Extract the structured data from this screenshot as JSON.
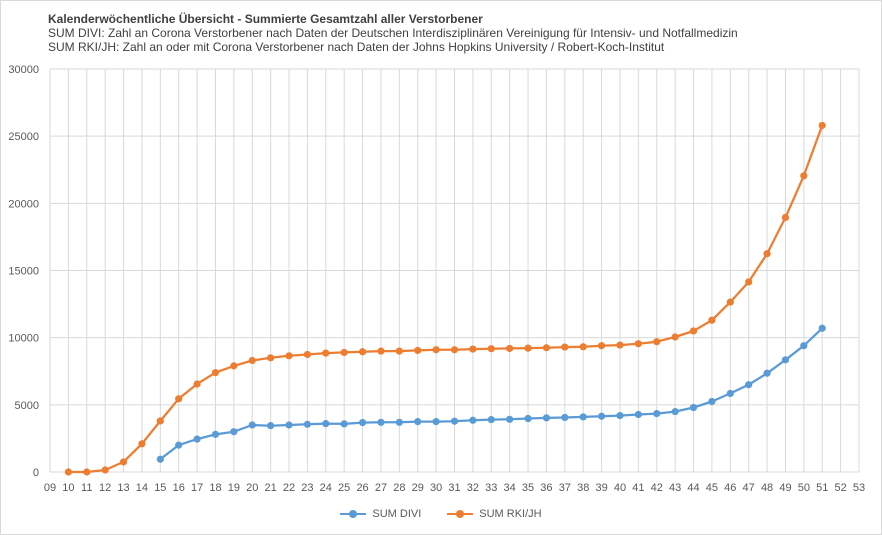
{
  "colors": {
    "divi": "#5b9bd5",
    "rki": "#ed7d31",
    "grid": "#d9d9d9",
    "axis_text": "#595959"
  },
  "chart_data": {
    "type": "line",
    "title": "Kalenderwöchentliche Übersicht -  Summierte Gesamtzahl aller Verstorbener",
    "subtitle_lines": [
      "SUM DIVI: Zahl an Corona Verstorbener nach Daten der Deutschen Interdisziplinären Vereinigung für Intensiv- und Notfallmedizin",
      "SUM RKI/JH: Zahl an oder mit Corona  Verstorbener nach Daten der Johns Hopkins University / Robert-Koch-Institut"
    ],
    "categories": [
      "09",
      "10",
      "11",
      "12",
      "13",
      "14",
      "15",
      "16",
      "17",
      "18",
      "19",
      "20",
      "21",
      "22",
      "23",
      "24",
      "25",
      "26",
      "27",
      "28",
      "29",
      "30",
      "31",
      "32",
      "33",
      "34",
      "35",
      "36",
      "37",
      "38",
      "39",
      "40",
      "41",
      "42",
      "43",
      "44",
      "45",
      "46",
      "47",
      "48",
      "49",
      "50",
      "51",
      "52",
      "53"
    ],
    "ylim": [
      0,
      30000
    ],
    "y_ticks": [
      0,
      5000,
      10000,
      15000,
      20000,
      25000,
      30000
    ],
    "grid": true,
    "legend_position": "bottom",
    "series": [
      {
        "name": "SUM DIVI",
        "color": "#5b9bd5",
        "values": [
          null,
          null,
          null,
          null,
          null,
          null,
          950,
          2000,
          2450,
          2800,
          3000,
          3500,
          3450,
          3500,
          3550,
          3600,
          3580,
          3680,
          3700,
          3700,
          3750,
          3750,
          3780,
          3850,
          3900,
          3920,
          3980,
          4030,
          4060,
          4100,
          4150,
          4200,
          4280,
          4350,
          4500,
          4800,
          5250,
          5850,
          6500,
          7350,
          8350,
          9400,
          10700,
          null,
          null
        ]
      },
      {
        "name": "SUM RKI/JH",
        "color": "#ed7d31",
        "values": [
          null,
          0,
          0,
          150,
          750,
          2100,
          3800,
          5450,
          6550,
          7400,
          7900,
          8300,
          8500,
          8650,
          8750,
          8850,
          8900,
          8950,
          9000,
          9000,
          9050,
          9100,
          9100,
          9150,
          9180,
          9200,
          9220,
          9250,
          9300,
          9320,
          9400,
          9450,
          9550,
          9700,
          10050,
          10500,
          11300,
          12650,
          14150,
          16250,
          18950,
          22050,
          25800,
          null,
          null
        ]
      }
    ]
  }
}
